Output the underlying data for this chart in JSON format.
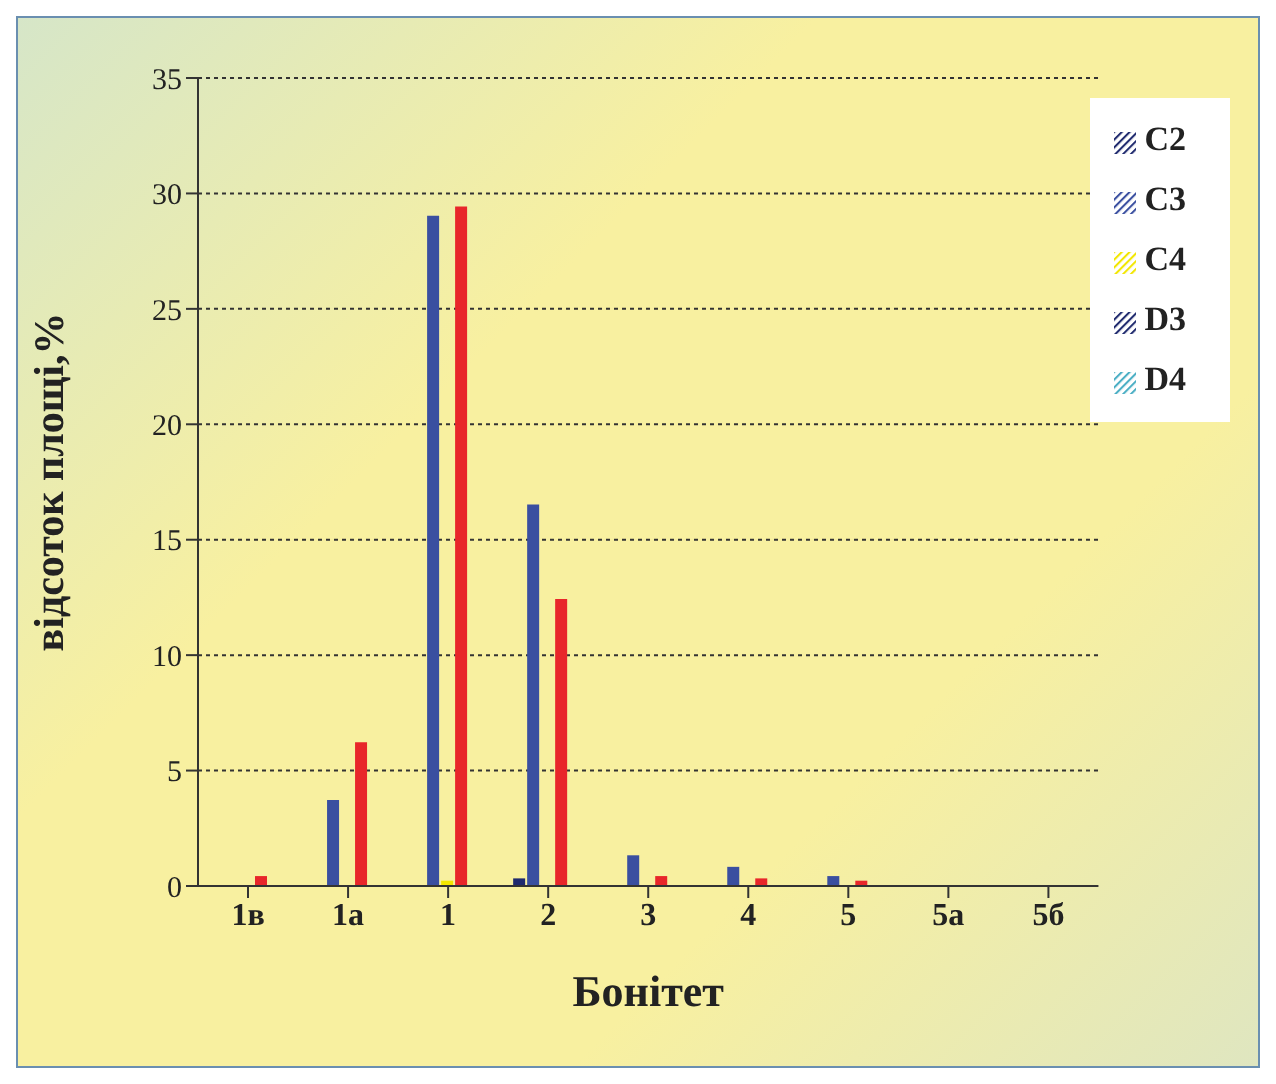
{
  "chart_data": {
    "type": "bar",
    "xlabel": "Бонітет",
    "ylabel": "відсоток площі,%",
    "categories": [
      "1в",
      "1а",
      "1",
      "2",
      "3",
      "4",
      "5",
      "5а",
      "5б"
    ],
    "series": [
      {
        "name": "C2",
        "color": "#1f2a6e",
        "values": [
          0,
          0,
          0,
          0.2,
          0,
          0,
          0,
          0,
          0
        ]
      },
      {
        "name": "C3",
        "color": "#3a4fa0",
        "values": [
          0,
          3.6,
          28.9,
          16.4,
          1.2,
          0.7,
          0.3,
          0,
          0
        ]
      },
      {
        "name": "C4",
        "color": "#f2e600",
        "values": [
          0,
          0,
          0.1,
          0,
          0,
          0,
          0,
          0,
          0
        ]
      },
      {
        "name": "D3",
        "color": "#e8262a",
        "values": [
          0.3,
          6.1,
          29.3,
          12.3,
          0.3,
          0.2,
          0.1,
          0,
          0
        ]
      },
      {
        "name": "D4",
        "color": "#4aaec4",
        "values": [
          0,
          0,
          0,
          0,
          0,
          0,
          0,
          0,
          0
        ]
      }
    ],
    "ylim": [
      0,
      35
    ],
    "yticks": [
      0,
      5,
      10,
      15,
      20,
      25,
      30,
      35
    ],
    "grid": "y",
    "legend": "top right"
  }
}
